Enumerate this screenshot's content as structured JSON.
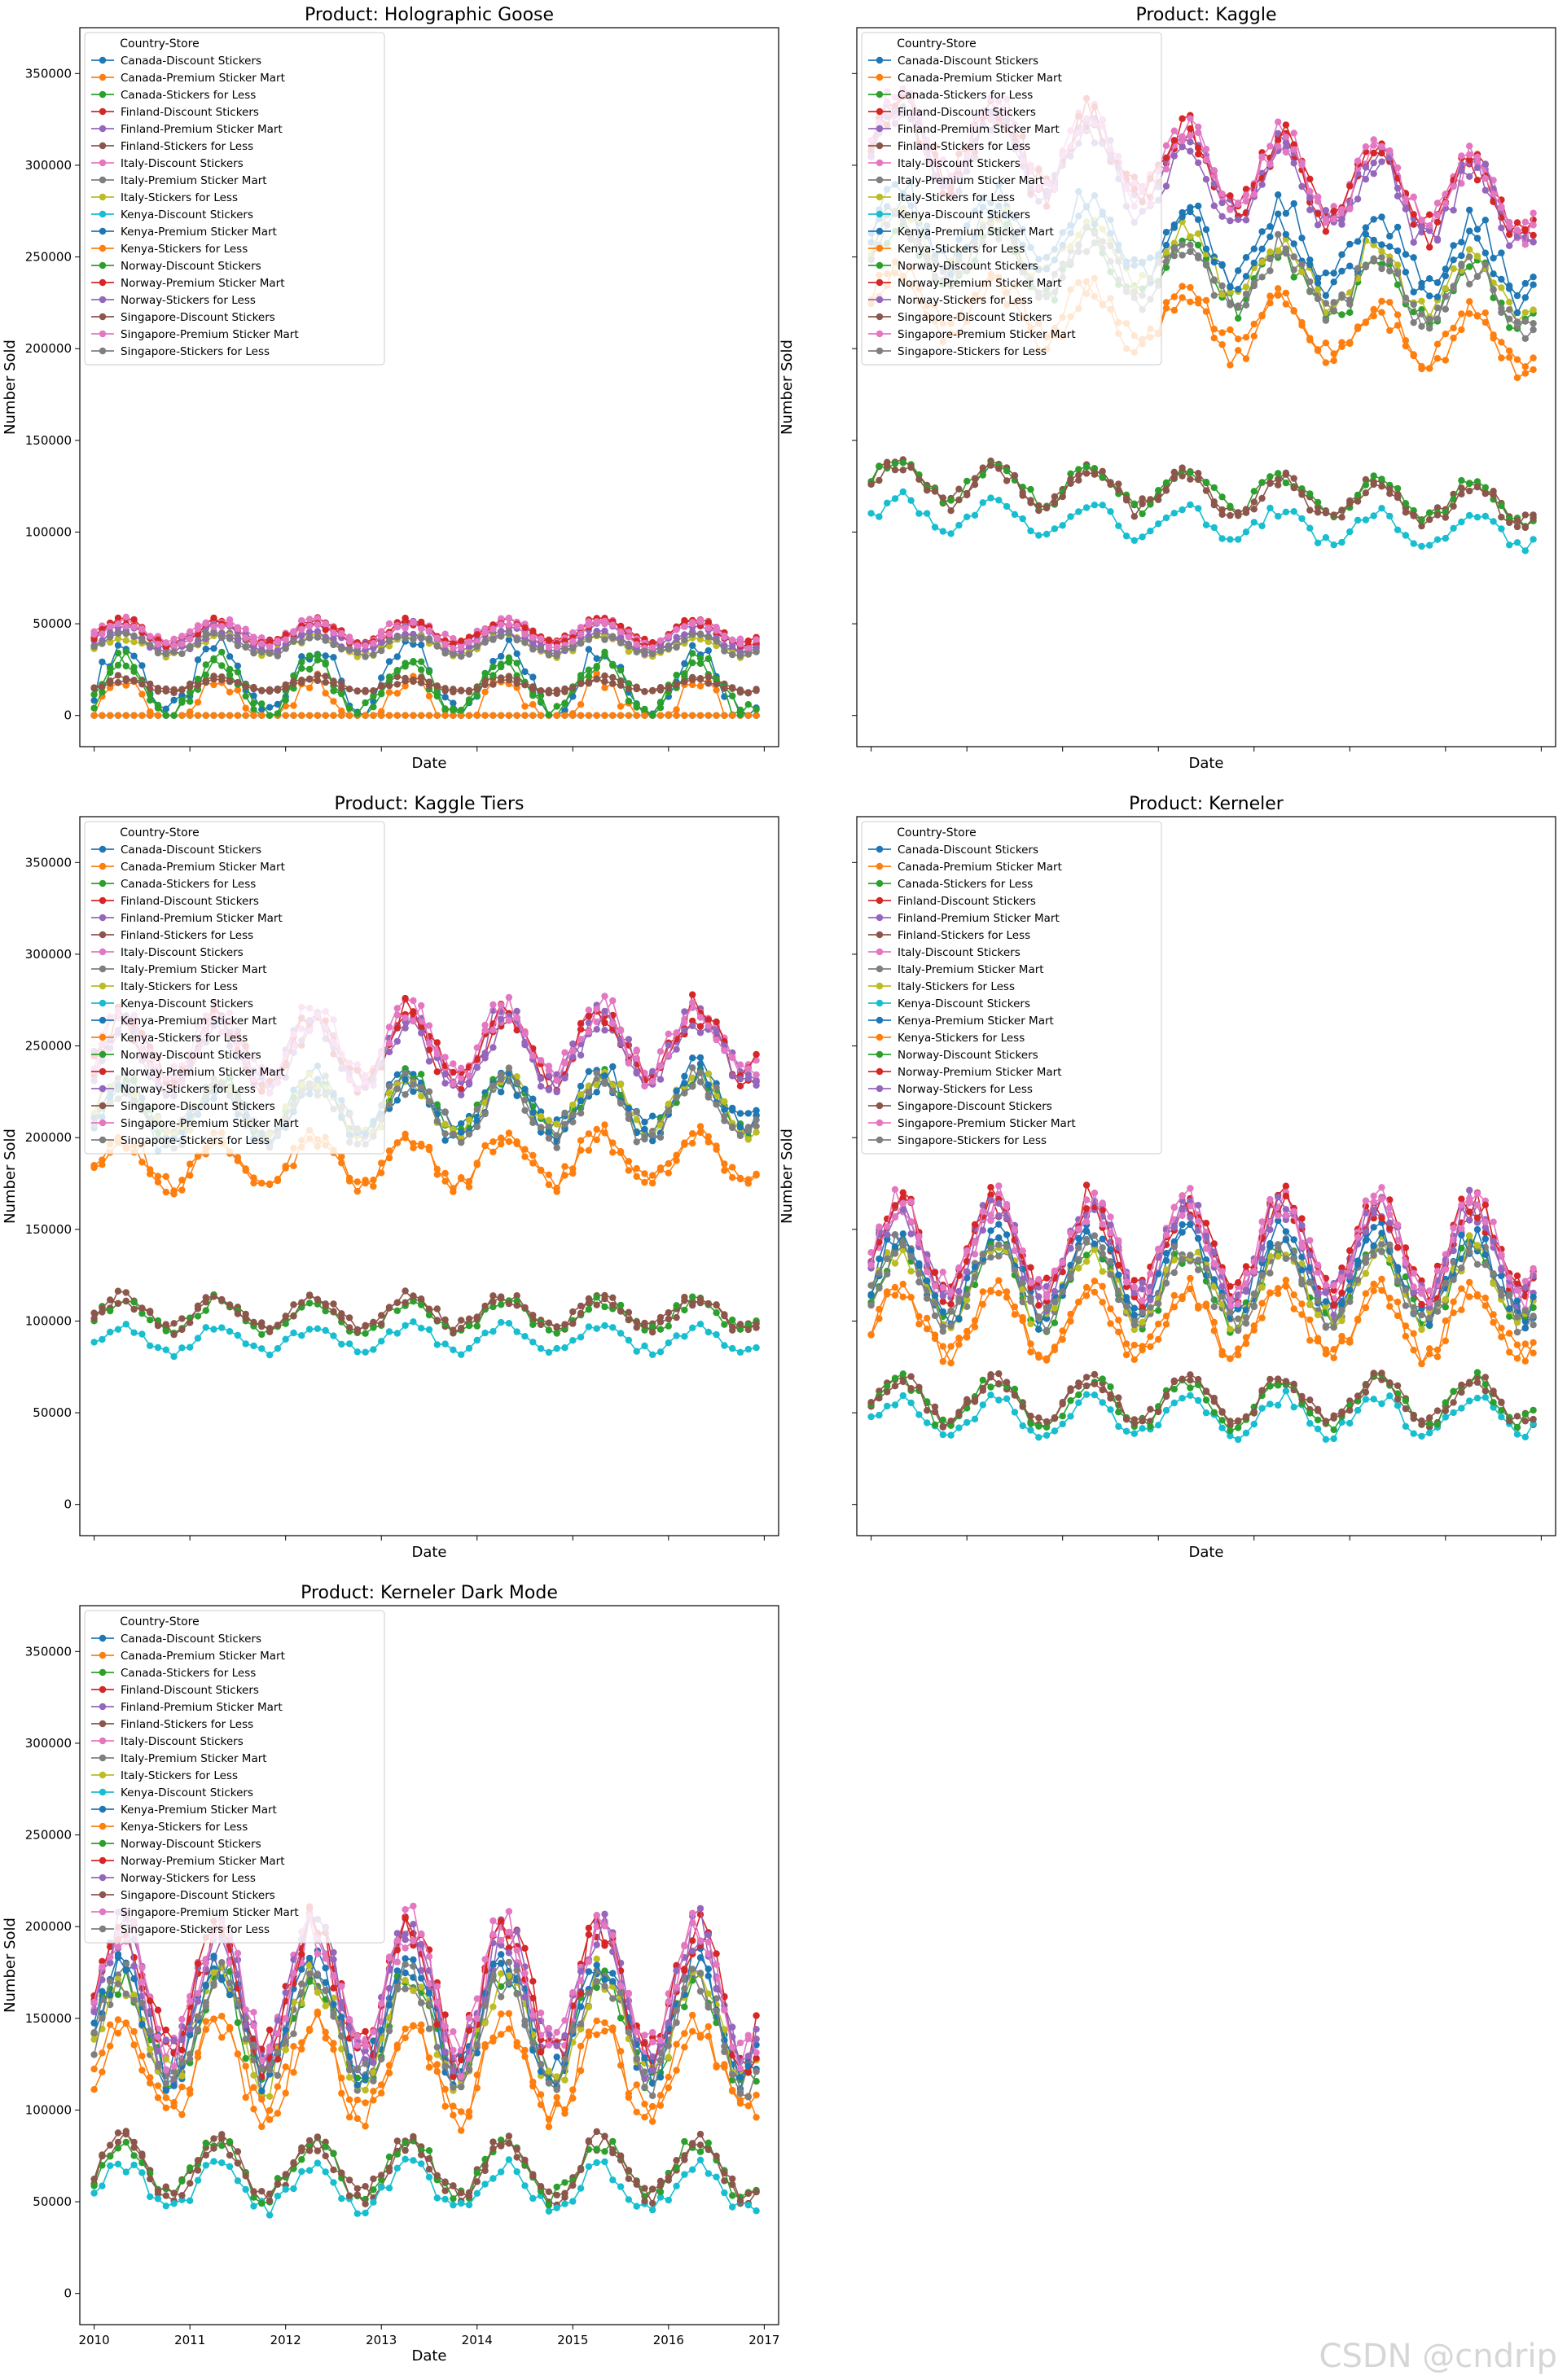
{
  "chart_data": {
    "type": "line",
    "layout_note": "3x2 grid of line subplots, shared y axis, shared x axis (dates)",
    "xlabel": "Date",
    "ylabel": "Number Sold",
    "legend_title": "Country-Store",
    "legend_position": "upper-left",
    "x_ticks": [
      "2010",
      "2011",
      "2012",
      "2013",
      "2014",
      "2015",
      "2016",
      "2017"
    ],
    "x_range": [
      2009.85,
      2017.15
    ],
    "ylim": [
      -17000,
      375000
    ],
    "y_ticks": [
      0,
      50000,
      100000,
      150000,
      200000,
      250000,
      300000,
      350000
    ],
    "series_names": [
      "Canada-Discount Stickers",
      "Canada-Premium Sticker Mart",
      "Canada-Stickers for Less",
      "Finland-Discount Stickers",
      "Finland-Premium Sticker Mart",
      "Finland-Stickers for Less",
      "Italy-Discount Stickers",
      "Italy-Premium Sticker Mart",
      "Italy-Stickers for Less",
      "Kenya-Discount Stickers",
      "Kenya-Premium Sticker Mart",
      "Kenya-Stickers for Less",
      "Norway-Discount Stickers",
      "Norway-Premium Sticker Mart",
      "Norway-Stickers for Less",
      "Singapore-Discount Stickers",
      "Singapore-Premium Sticker Mart",
      "Singapore-Stickers for Less"
    ],
    "series_colors": [
      "#1f77b4",
      "#ff7f0e",
      "#2ca02c",
      "#d62728",
      "#9467bd",
      "#8c564b",
      "#e377c2",
      "#7f7f7f",
      "#bcbd22",
      "#17becf"
    ],
    "panels": [
      {
        "title": "Product: Holographic Goose",
        "levels": [
          20000,
          5000,
          14000,
          46000,
          44000,
          17000,
          46000,
          40000,
          38000,
          0,
          0,
          0,
          16000,
          45000,
          40000,
          16000,
          44000,
          38000
        ],
        "amplitude": [
          18000,
          14000,
          16000,
          6000,
          6000,
          4000,
          6000,
          5000,
          5000,
          0,
          0,
          0,
          14000,
          6000,
          5000,
          3000,
          6000,
          5000
        ],
        "trend": [
          0,
          0,
          0,
          0,
          0,
          0,
          0,
          0,
          0,
          0,
          0,
          0,
          0,
          0,
          0,
          0,
          0,
          0
        ]
      },
      {
        "title": "Product: Kaggle",
        "levels": [
          270000,
          225000,
          255000,
          320000,
          315000,
          130000,
          320000,
          255000,
          262000,
          110000,
          265000,
          230000,
          130000,
          318000,
          312000,
          128000,
          320000,
          258000
        ],
        "amplitude": [
          18000,
          16000,
          16000,
          20000,
          20000,
          10000,
          20000,
          16000,
          16000,
          9000,
          16000,
          14000,
          10000,
          20000,
          20000,
          10000,
          20000,
          16000
        ],
        "trend": [
          -20000,
          -25000,
          -30000,
          -40000,
          -40000,
          -15000,
          -40000,
          -30000,
          -30000,
          -10000,
          -25000,
          -25000,
          -15000,
          -40000,
          -40000,
          -15000,
          -40000,
          -30000
        ]
      },
      {
        "title": "Product: Kaggle Tiers",
        "levels": [
          215000,
          185000,
          215000,
          245000,
          245000,
          105000,
          250000,
          215000,
          215000,
          90000,
          210000,
          185000,
          103000,
          248000,
          242000,
          104000,
          248000,
          212000
        ],
        "amplitude": [
          15000,
          13000,
          15000,
          18000,
          18000,
          8000,
          18000,
          15000,
          15000,
          7000,
          15000,
          13000,
          8000,
          18000,
          18000,
          8000,
          18000,
          15000
        ],
        "trend": [
          10000,
          5000,
          5000,
          5000,
          5000,
          0,
          5000,
          5000,
          5000,
          0,
          10000,
          5000,
          0,
          5000,
          5000,
          0,
          5000,
          5000
        ]
      },
      {
        "title": "Product: Kerneler",
        "levels": [
          125000,
          100000,
          120000,
          140000,
          138000,
          57000,
          140000,
          120000,
          120000,
          48000,
          125000,
          100000,
          56000,
          140000,
          138000,
          57000,
          140000,
          120000
        ],
        "amplitude": [
          22000,
          18000,
          20000,
          25000,
          25000,
          12000,
          25000,
          20000,
          20000,
          10000,
          22000,
          18000,
          12000,
          25000,
          25000,
          12000,
          25000,
          20000
        ],
        "trend": [
          0,
          0,
          0,
          0,
          0,
          0,
          0,
          0,
          0,
          0,
          0,
          0,
          0,
          0,
          0,
          0,
          0,
          0
        ]
      },
      {
        "title": "Product: Kerneler Dark Mode",
        "levels": [
          150000,
          122000,
          145000,
          165000,
          162000,
          68000,
          165000,
          145000,
          145000,
          58000,
          150000,
          122000,
          68000,
          165000,
          162000,
          68000,
          165000,
          145000
        ],
        "amplitude": [
          30000,
          25000,
          28000,
          35000,
          35000,
          15000,
          35000,
          28000,
          28000,
          12000,
          30000,
          25000,
          15000,
          35000,
          35000,
          15000,
          35000,
          28000
        ],
        "trend": [
          0,
          0,
          0,
          0,
          0,
          0,
          0,
          0,
          0,
          0,
          0,
          0,
          0,
          0,
          0,
          0,
          0,
          0
        ]
      }
    ]
  },
  "watermark": "CSDN @cndrip"
}
